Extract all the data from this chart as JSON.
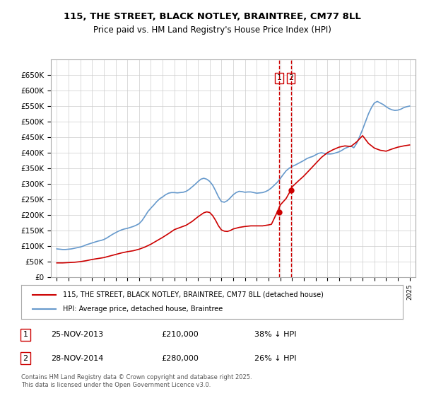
{
  "title": "115, THE STREET, BLACK NOTLEY, BRAINTREE, CM77 8LL",
  "subtitle": "Price paid vs. HM Land Registry's House Price Index (HPI)",
  "ylabel": "",
  "xlabel": "",
  "ylim": [
    0,
    700000
  ],
  "yticks": [
    0,
    50000,
    100000,
    150000,
    200000,
    250000,
    300000,
    350000,
    400000,
    450000,
    500000,
    550000,
    600000,
    650000
  ],
  "ytick_labels": [
    "£0",
    "£50K",
    "£100K",
    "£150K",
    "£200K",
    "£250K",
    "£300K",
    "£350K",
    "£400K",
    "£450K",
    "£500K",
    "£550K",
    "£600K",
    "£650K"
  ],
  "red_color": "#cc0000",
  "blue_color": "#6699cc",
  "sale1_date": 2013.9,
  "sale1_price": 210000,
  "sale1_label": "25-NOV-2013",
  "sale1_pct": "38% ↓ HPI",
  "sale2_date": 2014.9,
  "sale2_price": 280000,
  "sale2_label": "28-NOV-2014",
  "sale2_pct": "26% ↓ HPI",
  "legend_line1": "115, THE STREET, BLACK NOTLEY, BRAINTREE, CM77 8LL (detached house)",
  "legend_line2": "HPI: Average price, detached house, Braintree",
  "footer": "Contains HM Land Registry data © Crown copyright and database right 2025.\nThis data is licensed under the Open Government Licence v3.0.",
  "bg_color": "#ffffff",
  "grid_color": "#cccccc",
  "hpi_data": {
    "years": [
      1995.0,
      1995.25,
      1995.5,
      1995.75,
      1996.0,
      1996.25,
      1996.5,
      1996.75,
      1997.0,
      1997.25,
      1997.5,
      1997.75,
      1998.0,
      1998.25,
      1998.5,
      1998.75,
      1999.0,
      1999.25,
      1999.5,
      1999.75,
      2000.0,
      2000.25,
      2000.5,
      2000.75,
      2001.0,
      2001.25,
      2001.5,
      2001.75,
      2002.0,
      2002.25,
      2002.5,
      2002.75,
      2003.0,
      2003.25,
      2003.5,
      2003.75,
      2004.0,
      2004.25,
      2004.5,
      2004.75,
      2005.0,
      2005.25,
      2005.5,
      2005.75,
      2006.0,
      2006.25,
      2006.5,
      2006.75,
      2007.0,
      2007.25,
      2007.5,
      2007.75,
      2008.0,
      2008.25,
      2008.5,
      2008.75,
      2009.0,
      2009.25,
      2009.5,
      2009.75,
      2010.0,
      2010.25,
      2010.5,
      2010.75,
      2011.0,
      2011.25,
      2011.5,
      2011.75,
      2012.0,
      2012.25,
      2012.5,
      2012.75,
      2013.0,
      2013.25,
      2013.5,
      2013.75,
      2014.0,
      2014.25,
      2014.5,
      2014.75,
      2015.0,
      2015.25,
      2015.5,
      2015.75,
      2016.0,
      2016.25,
      2016.5,
      2016.75,
      2017.0,
      2017.25,
      2017.5,
      2017.75,
      2018.0,
      2018.25,
      2018.5,
      2018.75,
      2019.0,
      2019.25,
      2019.5,
      2019.75,
      2020.0,
      2020.25,
      2020.5,
      2020.75,
      2021.0,
      2021.25,
      2021.5,
      2021.75,
      2022.0,
      2022.25,
      2022.5,
      2022.75,
      2023.0,
      2023.25,
      2023.5,
      2023.75,
      2024.0,
      2024.25,
      2024.5,
      2024.75,
      2025.0
    ],
    "values": [
      91000,
      90000,
      89000,
      89000,
      90000,
      91000,
      93000,
      95000,
      97000,
      100000,
      104000,
      107000,
      110000,
      113000,
      116000,
      118000,
      121000,
      126000,
      132000,
      138000,
      143000,
      148000,
      152000,
      155000,
      157000,
      160000,
      163000,
      167000,
      172000,
      182000,
      196000,
      211000,
      222000,
      232000,
      243000,
      252000,
      258000,
      265000,
      270000,
      272000,
      272000,
      271000,
      272000,
      273000,
      276000,
      282000,
      290000,
      298000,
      307000,
      315000,
      318000,
      315000,
      308000,
      296000,
      278000,
      258000,
      243000,
      241000,
      246000,
      255000,
      265000,
      272000,
      276000,
      275000,
      273000,
      274000,
      274000,
      272000,
      270000,
      271000,
      272000,
      275000,
      280000,
      287000,
      296000,
      305000,
      317000,
      330000,
      342000,
      350000,
      356000,
      360000,
      365000,
      370000,
      375000,
      381000,
      385000,
      388000,
      393000,
      398000,
      400000,
      398000,
      396000,
      396000,
      397000,
      400000,
      403000,
      408000,
      414000,
      418000,
      422000,
      416000,
      430000,
      452000,
      475000,
      500000,
      525000,
      545000,
      560000,
      565000,
      560000,
      555000,
      548000,
      542000,
      538000,
      536000,
      537000,
      540000,
      545000,
      548000,
      550000
    ]
  },
  "red_data": {
    "years": [
      1995.0,
      1995.5,
      1996.0,
      1996.5,
      1997.0,
      1997.5,
      1998.0,
      1998.5,
      1999.0,
      1999.5,
      2000.0,
      2000.5,
      2001.0,
      2001.5,
      2002.0,
      2002.5,
      2003.0,
      2003.5,
      2004.0,
      2004.5,
      2005.0,
      2005.5,
      2006.0,
      2006.5,
      2007.0,
      2007.5,
      2007.75,
      2008.0,
      2008.25,
      2008.5,
      2008.75,
      2009.0,
      2009.25,
      2009.5,
      2009.75,
      2010.0,
      2010.5,
      2011.0,
      2011.5,
      2012.0,
      2012.5,
      2013.0,
      2013.25,
      2013.75,
      2014.0,
      2014.5,
      2014.9,
      2015.0,
      2015.5,
      2016.0,
      2016.5,
      2017.0,
      2017.5,
      2018.0,
      2018.5,
      2019.0,
      2019.5,
      2020.0,
      2020.5,
      2021.0,
      2021.5,
      2022.0,
      2022.5,
      2023.0,
      2023.5,
      2024.0,
      2024.5,
      2025.0
    ],
    "values": [
      46000,
      46000,
      47000,
      48000,
      50000,
      53000,
      57000,
      60000,
      63000,
      68000,
      73000,
      78000,
      82000,
      85000,
      90000,
      97000,
      106000,
      117000,
      128000,
      140000,
      153000,
      160000,
      167000,
      179000,
      194000,
      207000,
      210000,
      208000,
      198000,
      183000,
      165000,
      152000,
      148000,
      147000,
      150000,
      155000,
      160000,
      163000,
      165000,
      165000,
      165000,
      168000,
      170000,
      210000,
      232000,
      253000,
      280000,
      290000,
      308000,
      325000,
      345000,
      365000,
      385000,
      400000,
      410000,
      418000,
      422000,
      420000,
      435000,
      455000,
      430000,
      415000,
      408000,
      405000,
      412000,
      418000,
      422000,
      425000
    ]
  }
}
